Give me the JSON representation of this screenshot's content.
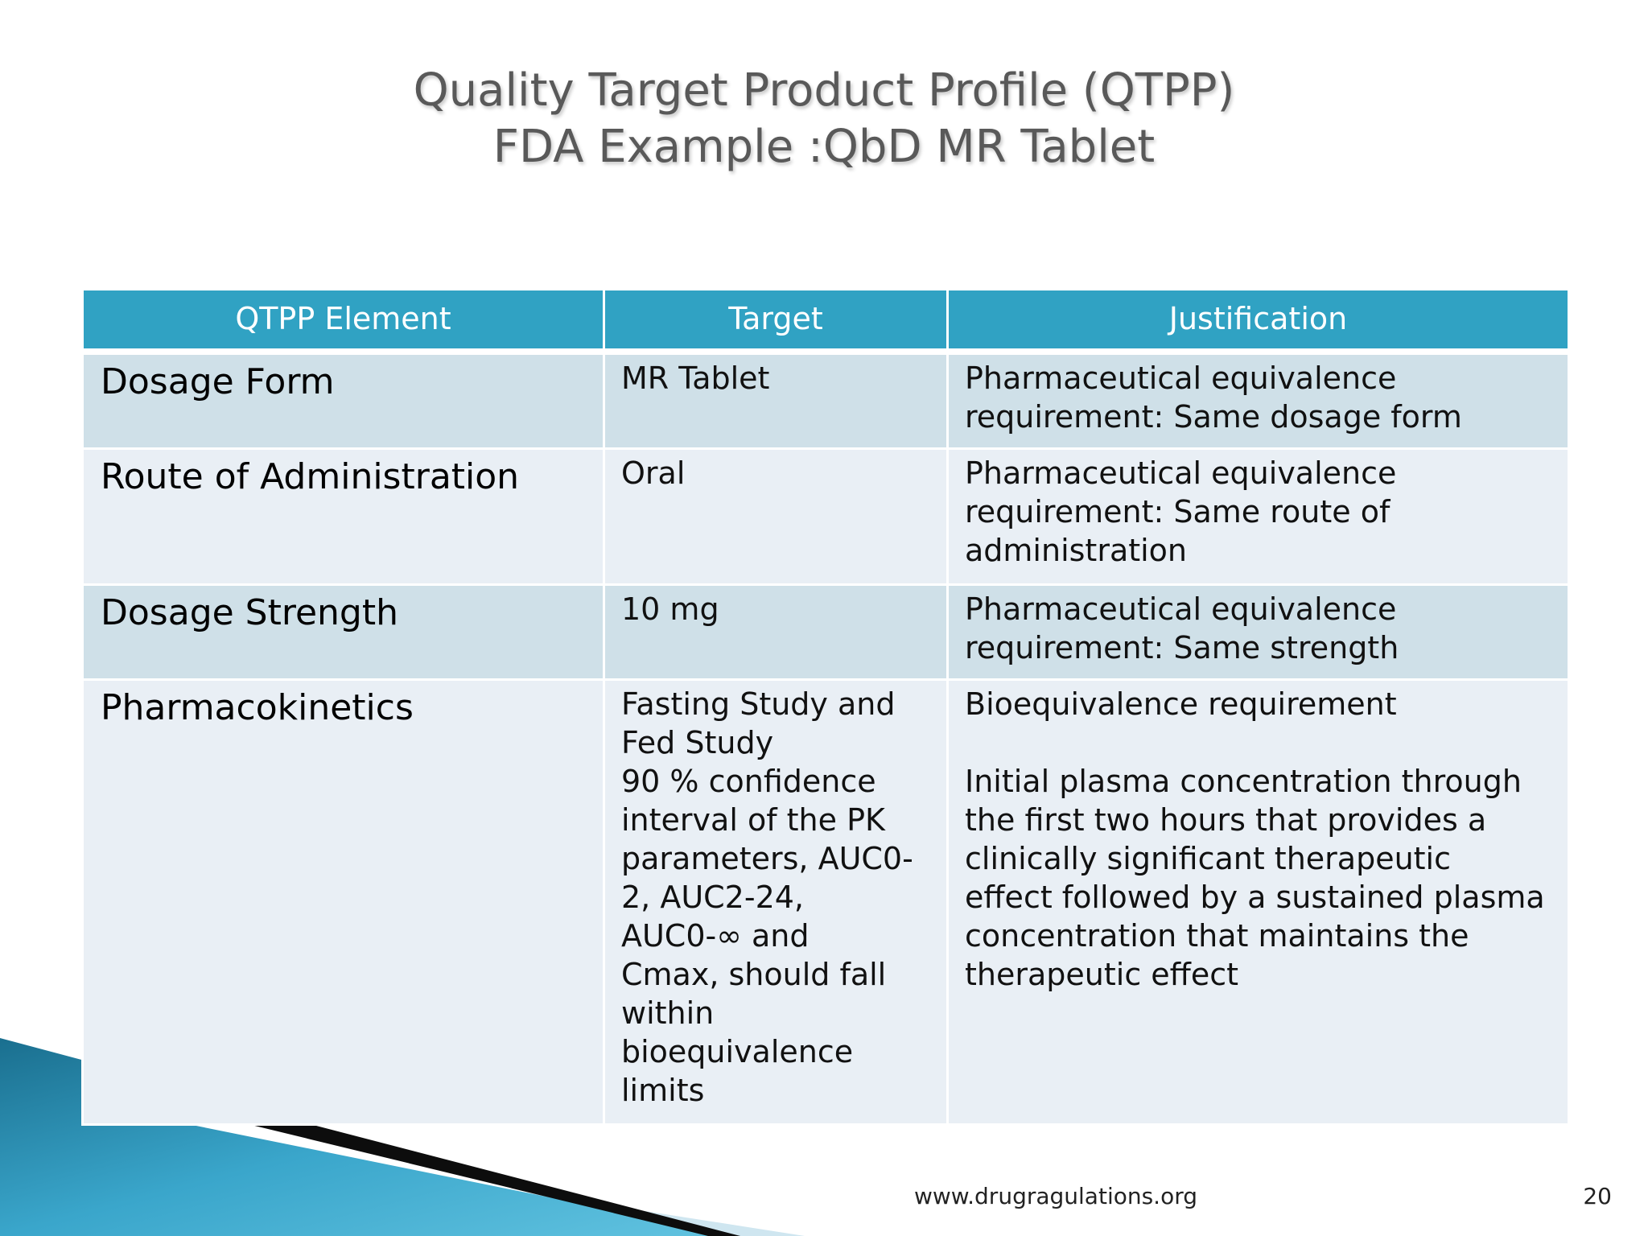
{
  "slide": {
    "title_line1": "Quality Target Product Profile (QTPP)",
    "title_line2": "FDA Example :QbD MR Tablet"
  },
  "table": {
    "headers": [
      "QTPP Element",
      "Target",
      "Justification"
    ],
    "rows": [
      {
        "element": "Dosage Form",
        "target": "MR Tablet",
        "justification": "Pharmaceutical equivalence\nrequirement: Same dosage form"
      },
      {
        "element": "Route of Administration",
        "target": "Oral",
        "justification": "Pharmaceutical equivalence\nrequirement: Same route of\nadministration"
      },
      {
        "element": "Dosage Strength",
        "target": "10 mg",
        "justification": "Pharmaceutical equivalence\nrequirement: Same strength"
      },
      {
        "element": "Pharmacokinetics",
        "target": "Fasting Study and\nFed Study\n90 % confidence\ninterval of the PK\nparameters, AUC0-\n2, AUC2-24,\nAUC0-∞ and\nCmax, should fall\nwithin\nbioequivalence\nlimits",
        "justification": "Bioequivalence requirement\n\nInitial plasma concentration through\nthe first two hours that provides a\nclinically significant therapeutic\neffect followed by a sustained plasma\nconcentration that maintains the\ntherapeutic effect"
      }
    ]
  },
  "footer": {
    "url": "www.drugragulations.org",
    "page_number": "20"
  },
  "colors": {
    "header_bg": "#30a2c3",
    "row_dark": "#cfe0e8",
    "row_light": "#e9eff5",
    "accent_teal": "#1e8fb3"
  }
}
